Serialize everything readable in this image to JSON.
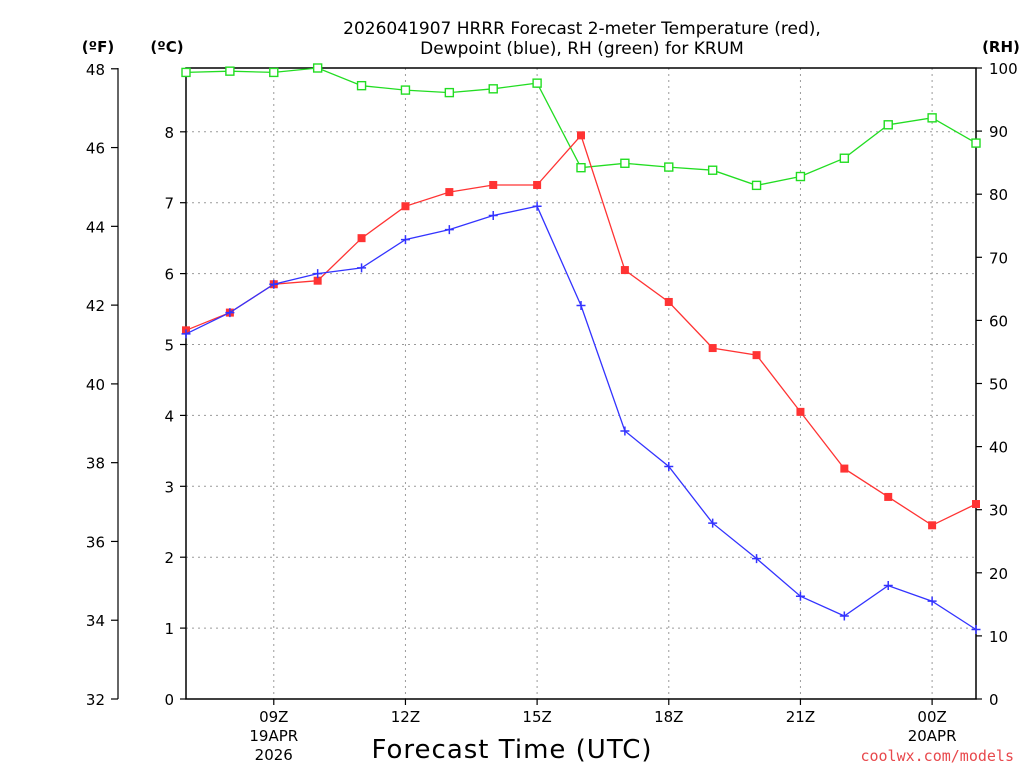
{
  "chart_data": {
    "type": "line",
    "title_line1": "2026041907 HRRR Forecast 2-meter Temperature (red),",
    "title_line2": "Dewpoint (blue), RH (green) for KRUM",
    "unit_labels": {
      "fahrenheit": "(ºF)",
      "celsius": "(ºC)",
      "rh": "(RH)"
    },
    "xlabel": "Forecast Time (UTC)",
    "credit": "coolwx.com/models",
    "x_range": [
      7,
      25
    ],
    "x_ticks": [
      {
        "t": 9,
        "label": "09Z",
        "sub1": "19APR",
        "sub2": "2026"
      },
      {
        "t": 12,
        "label": "12Z",
        "sub1": "",
        "sub2": ""
      },
      {
        "t": 15,
        "label": "15Z",
        "sub1": "",
        "sub2": ""
      },
      {
        "t": 18,
        "label": "18Z",
        "sub1": "",
        "sub2": ""
      },
      {
        "t": 21,
        "label": "21Z",
        "sub1": "",
        "sub2": ""
      },
      {
        "t": 24,
        "label": "00Z",
        "sub1": "20APR",
        "sub2": ""
      }
    ],
    "y_celsius": {
      "range": [
        0,
        8.9
      ],
      "ticks": [
        0,
        1,
        2,
        3,
        4,
        5,
        6,
        7,
        8
      ]
    },
    "y_fahrenheit": {
      "range": [
        32,
        48.02
      ],
      "ticks": [
        32,
        34,
        36,
        38,
        40,
        42,
        44,
        46,
        48
      ]
    },
    "y_rh": {
      "range": [
        0,
        100
      ],
      "ticks": [
        0,
        10,
        20,
        30,
        40,
        50,
        60,
        70,
        80,
        90,
        100
      ]
    },
    "x": [
      7,
      8,
      9,
      10,
      11,
      12,
      13,
      14,
      15,
      16,
      17,
      18,
      19,
      20,
      21,
      22,
      23,
      24,
      25
    ],
    "series": [
      {
        "name": "2-meter Temperature",
        "axis": "celsius",
        "color": "#ff3333",
        "marker": "filled-square",
        "values": [
          5.2,
          5.45,
          5.85,
          5.9,
          6.5,
          6.95,
          7.15,
          7.25,
          7.25,
          7.95,
          6.05,
          5.6,
          4.95,
          4.85,
          4.05,
          3.25,
          2.85,
          2.45,
          2.75
        ]
      },
      {
        "name": "Dewpoint",
        "axis": "celsius",
        "color": "#3333ff",
        "marker": "plus",
        "values": [
          5.15,
          5.45,
          5.85,
          6.0,
          6.08,
          6.48,
          6.62,
          6.82,
          6.95,
          5.55,
          3.78,
          3.28,
          2.48,
          1.98,
          1.45,
          1.17,
          1.6,
          1.38,
          0.98
        ]
      },
      {
        "name": "RH",
        "axis": "rh",
        "color": "#22dd22",
        "marker": "open-square",
        "values": [
          99.3,
          99.5,
          99.3,
          100,
          97.2,
          96.5,
          96.1,
          96.7,
          97.6,
          84.2,
          84.9,
          84.3,
          83.8,
          81.4,
          82.8,
          85.7,
          91.0,
          92.1,
          88.1
        ]
      }
    ]
  }
}
